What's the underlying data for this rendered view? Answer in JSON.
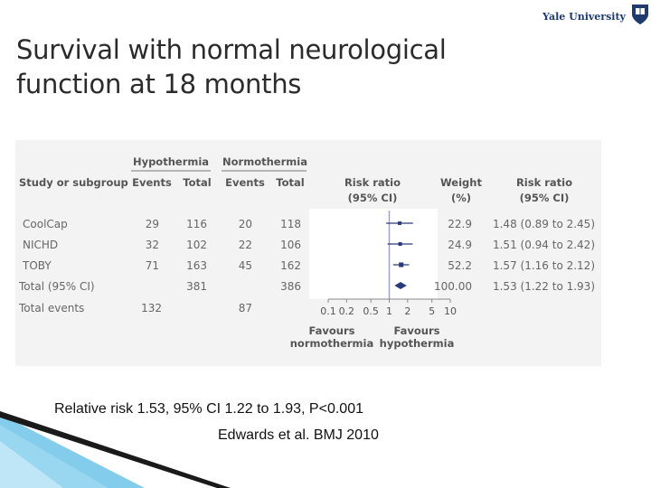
{
  "slide": {
    "title_line1": "Survival with normal neurological",
    "title_line2": "function at 18 months",
    "logo_text": "Yale University",
    "caption_stats": "Relative risk 1.53, 95% CI 1.22 to 1.93, P<0.001",
    "caption_citation": "Edwards et al. BMJ 2010"
  },
  "colors": {
    "marker": "#2b3a7a",
    "reference_line": "#9aa6c8",
    "panel_bg": "#f3f3f3",
    "text": "#555555"
  },
  "chart_data": {
    "type": "forest",
    "headers": {
      "group_hypothermia": "Hypothermia",
      "group_normothermia": "Normothermia",
      "study_col": "Study or subgroup",
      "events": "Events",
      "total": "Total",
      "rr_plot_line1": "Risk ratio",
      "rr_plot_line2": "(95% CI)",
      "weight_line1": "Weight",
      "weight_line2": "(%)",
      "rr_text_line1": "Risk ratio",
      "rr_text_line2": "(95% CI)"
    },
    "rows": [
      {
        "study": "CoolCap",
        "hypo_events": "29",
        "hypo_total": "116",
        "normo_events": "20",
        "normo_total": "118",
        "weight": "22.9",
        "rr_text": "1.48 (0.89 to 2.45)",
        "rr": 1.48,
        "ci": [
          0.89,
          2.45
        ]
      },
      {
        "study": "NICHD",
        "hypo_events": "32",
        "hypo_total": "102",
        "normo_events": "22",
        "normo_total": "106",
        "weight": "24.9",
        "rr_text": "1.51 (0.94 to 2.42)",
        "rr": 1.51,
        "ci": [
          0.94,
          2.42
        ]
      },
      {
        "study": "TOBY",
        "hypo_events": "71",
        "hypo_total": "163",
        "normo_events": "45",
        "normo_total": "162",
        "weight": "52.2",
        "rr_text": "1.57 (1.16 to 2.12)",
        "rr": 1.57,
        "ci": [
          1.16,
          2.12
        ]
      }
    ],
    "total": {
      "label": "Total (95% CI)",
      "hypo_total": "381",
      "normo_total": "386",
      "weight": "100.00",
      "rr_text": "1.53 (1.22 to 1.93)",
      "rr": 1.53,
      "ci": [
        1.22,
        1.93
      ]
    },
    "total_events": {
      "label": "Total events",
      "hypo_events": "132",
      "normo_events": "87"
    },
    "x_scale": "log",
    "xlim": [
      0.1,
      10
    ],
    "x_ticks": [
      0.1,
      0.2,
      0.5,
      1,
      2,
      5,
      10
    ],
    "x_tick_labels": [
      "0.1",
      "0.2",
      "0.5",
      "1",
      "2",
      "5",
      "10"
    ],
    "favours_left_line1": "Favours",
    "favours_left_line2": "normothermia",
    "favours_right_line1": "Favours",
    "favours_right_line2": "hypothermia"
  }
}
